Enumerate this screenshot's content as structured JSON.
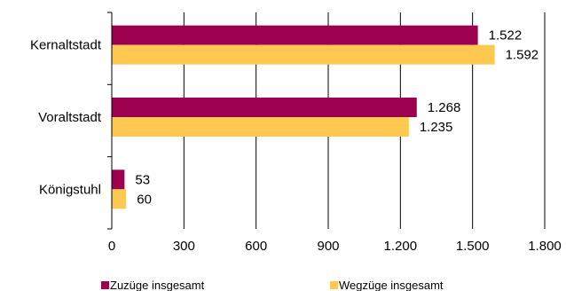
{
  "chart_data": {
    "type": "bar",
    "orientation": "horizontal",
    "categories": [
      "Kernaltstadt",
      "Voraltstadt",
      "Königstuhl"
    ],
    "series": [
      {
        "name": "Zuzüge insgesamt",
        "values": [
          1522,
          1268,
          53
        ],
        "labels": [
          "1.522",
          "1.268",
          "53"
        ],
        "color": "#9e0050"
      },
      {
        "name": "Wegzüge insgesamt",
        "values": [
          1592,
          1235,
          60
        ],
        "labels": [
          "1.592",
          "1.235",
          "60"
        ],
        "color": "#ffc850"
      }
    ],
    "xlim": [
      0,
      1800
    ],
    "xticks": [
      0,
      300,
      600,
      900,
      1200,
      1500,
      1800
    ],
    "xtick_labels": [
      "0",
      "300",
      "600",
      "900",
      "1.200",
      "1.500",
      "1.800"
    ],
    "grid": "vertical",
    "legend": "bottom",
    "title": "",
    "xlabel": "",
    "ylabel": ""
  }
}
